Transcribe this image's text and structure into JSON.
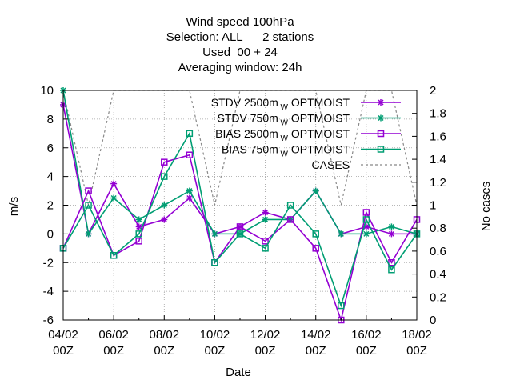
{
  "chart_data": {
    "type": "line",
    "title_lines": [
      "Wind speed 100hPa",
      "Selection: ALL      2 stations",
      "Used  00 + 24",
      "Averaging window: 24h"
    ],
    "xlabel": "Date",
    "ylabel": "m/s",
    "y2label": "No cases",
    "x": [
      "04/02 00Z",
      "05/02 00Z",
      "06/02 00Z",
      "07/02 00Z",
      "08/02 00Z",
      "09/02 00Z",
      "10/02 00Z",
      "11/02 00Z",
      "12/02 00Z",
      "13/02 00Z",
      "14/02 00Z",
      "15/02 00Z",
      "16/02 00Z",
      "17/02 00Z",
      "18/02 00Z"
    ],
    "x_tick_labels": [
      {
        "top": "04/02",
        "bottom": "00Z"
      },
      {
        "top": "06/02",
        "bottom": "00Z"
      },
      {
        "top": "08/02",
        "bottom": "00Z"
      },
      {
        "top": "10/02",
        "bottom": "00Z"
      },
      {
        "top": "12/02",
        "bottom": "00Z"
      },
      {
        "top": "14/02",
        "bottom": "00Z"
      },
      {
        "top": "16/02",
        "bottom": "00Z"
      },
      {
        "top": "18/02",
        "bottom": "00Z"
      }
    ],
    "ylim": [
      -6,
      10
    ],
    "y_ticks": [
      "-6",
      "-4",
      "-2",
      "0",
      "2",
      "4",
      "6",
      "8",
      "10"
    ],
    "y2lim": [
      0,
      2
    ],
    "y2_ticks": [
      "0",
      "0.2",
      "0.4",
      "0.6",
      "0.8",
      "1",
      "1.2",
      "1.4",
      "1.6",
      "1.8",
      "2"
    ],
    "grid": true,
    "legend_position": "top-right",
    "series": [
      {
        "name": "STDV 2500m",
        "sub": "W",
        "suffix": "OPTMOIST",
        "color": "#9400d3",
        "marker": "star",
        "dash": false,
        "axis": "y1",
        "values": [
          9,
          0,
          3.5,
          0.5,
          1,
          2.5,
          0,
          0.5,
          1.5,
          1,
          3,
          0,
          0.5,
          0,
          0
        ]
      },
      {
        "name": "STDV 750m",
        "sub": "W",
        "suffix": "OPTMOIST",
        "color": "#009e73",
        "marker": "star",
        "dash": false,
        "axis": "y1",
        "values": [
          10,
          0,
          2.5,
          1,
          2,
          3,
          0,
          0,
          1,
          1,
          3,
          0,
          0,
          0.5,
          0
        ]
      },
      {
        "name": "BIAS 2500m",
        "sub": "W",
        "suffix": "OPTMOIST",
        "color": "#9400d3",
        "marker": "square",
        "dash": false,
        "axis": "y1",
        "values": [
          -1,
          3,
          -1.5,
          -0.5,
          5,
          5.5,
          -2,
          0.5,
          -0.5,
          1,
          -1,
          -6,
          1.5,
          -2,
          1
        ]
      },
      {
        "name": "BIAS 750m",
        "sub": "W",
        "suffix": "OPTMOIST",
        "color": "#009e73",
        "marker": "square",
        "dash": false,
        "axis": "y1",
        "values": [
          -1,
          2,
          -1.5,
          0,
          4,
          7,
          -2,
          0,
          -1,
          2,
          0,
          -5,
          1,
          -2.5,
          0
        ]
      },
      {
        "name": "CASES",
        "sub": "",
        "suffix": "",
        "color": "#888888",
        "marker": "none",
        "dash": true,
        "axis": "y2",
        "values": [
          2,
          1,
          2,
          2,
          2,
          2,
          1,
          2,
          2,
          2,
          2,
          1,
          2,
          2,
          1
        ]
      }
    ]
  }
}
